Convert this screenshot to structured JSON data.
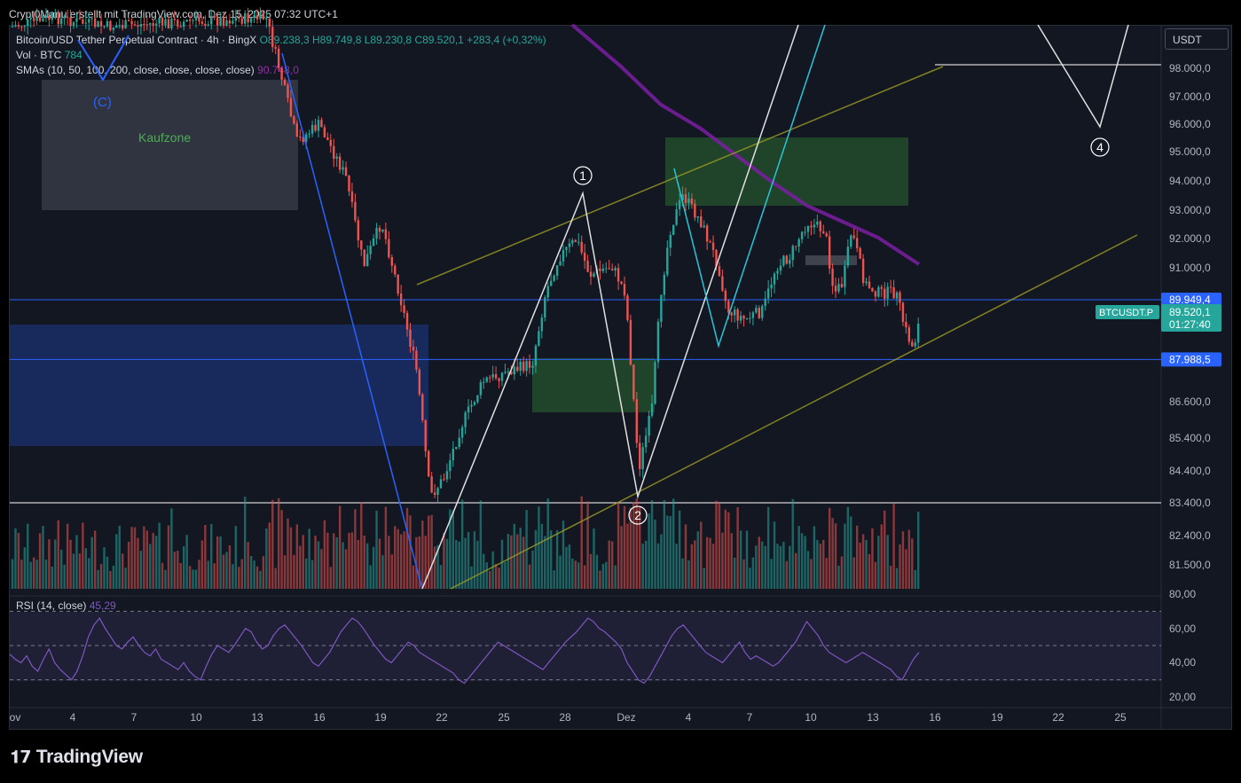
{
  "header": {
    "credit": "Crypt0Manu erstellt mit TradingView.com, Dez 15, 2025 07:32 UTC+1"
  },
  "legend": {
    "symbol": "Bitcoin/USD Tether Perpetual Contract · 4h · BingX",
    "open": "O89.238,3",
    "high": "H89.749,8",
    "low": "L89.230,8",
    "close": "C89.520,1",
    "change": "+283,4 (+0,32%)",
    "vol_label": "Vol · BTC",
    "vol_value": "784",
    "sma_label": "SMAs (10, 50, 100, 200, close, close, close, close)",
    "sma_value": "90.748,0"
  },
  "rsi": {
    "label": "RSI (14, close)",
    "value": "45,29"
  },
  "currency": "USDT",
  "footer": {
    "logo_text": "TradingView"
  },
  "colors": {
    "background": "#131722",
    "up": "#26a69a",
    "down": "#ef5350",
    "accent_blue": "#2962ff",
    "sma": "#7b1fa2",
    "rsi": "#7e57c2"
  },
  "chart_data": {
    "type": "candlestick",
    "y_axis_ticks": [
      "98.000,0",
      "97.000,0",
      "96.000,0",
      "95.000,0",
      "94.000,0",
      "93.000,0",
      "92.000,0",
      "91.000,0",
      "86.600,0",
      "85.400,0",
      "84.400,0",
      "83.400,0",
      "82.400,0",
      "81.500,0",
      "80,00"
    ],
    "y_tick_values": [
      98000,
      97000,
      96000,
      95000,
      94000,
      93000,
      92000,
      91000,
      86600,
      85400,
      84400,
      83400,
      82400,
      81500
    ],
    "x_axis_ticks": [
      "ov",
      "4",
      "7",
      "10",
      "13",
      "16",
      "19",
      "22",
      "25",
      "28",
      "Dez",
      "4",
      "7",
      "10",
      "13",
      "16",
      "19",
      "22",
      "25"
    ],
    "rsi_ticks": [
      "80,00",
      "60,00",
      "40,00",
      "20,00"
    ],
    "price_labels": [
      {
        "text": "89.949,4",
        "value": 89949.4,
        "color": "#2962ff"
      },
      {
        "text": "89.520,1",
        "value": 89520.1,
        "color": "#26a69a"
      },
      {
        "text": "01:27:40",
        "value": null,
        "color": "#26a69a"
      },
      {
        "text": "87.988,5",
        "value": 87988.5,
        "color": "#2962ff"
      }
    ],
    "symbol_tag": "BTCUSDT.P",
    "annotations": [
      {
        "text": "(C)",
        "color": "#2962ff"
      },
      {
        "text": "Kaufzone",
        "color": "#4caf50"
      },
      {
        "text": "1",
        "color": "#ffffff"
      },
      {
        "text": "2",
        "color": "#ffffff"
      },
      {
        "text": "4",
        "color": "#ffffff"
      }
    ],
    "horizontal_lines": [
      {
        "value": 89949.4,
        "color": "#2962ff"
      },
      {
        "value": 87988.5,
        "color": "#2962ff"
      },
      {
        "value": 83400,
        "color": "#ffffff"
      }
    ],
    "rsi_levels": [
      70,
      50,
      30
    ],
    "rsi_series": [
      45,
      42,
      40,
      44,
      38,
      35,
      42,
      48,
      40,
      36,
      33,
      30,
      35,
      44,
      55,
      62,
      66,
      60,
      55,
      50,
      48,
      52,
      55,
      50,
      46,
      44,
      48,
      42,
      40,
      38,
      36,
      40,
      35,
      32,
      30,
      38,
      45,
      50,
      48,
      46,
      50,
      55,
      60,
      58,
      52,
      48,
      50,
      56,
      60,
      62,
      58,
      54,
      50,
      45,
      40,
      38,
      42,
      46,
      52,
      58,
      62,
      66,
      64,
      60,
      55,
      50,
      46,
      42,
      40,
      44,
      48,
      52,
      50,
      46,
      44,
      42,
      40,
      38,
      36,
      34,
      30,
      28,
      32,
      36,
      40,
      44,
      48,
      52,
      50,
      48,
      46,
      44,
      42,
      40,
      38,
      36,
      40,
      44,
      48,
      52,
      55,
      58,
      62,
      66,
      64,
      60,
      58,
      55,
      52,
      48,
      40,
      35,
      30,
      28,
      32,
      38,
      44,
      50,
      56,
      60,
      62,
      58,
      54,
      50,
      46,
      44,
      42,
      40,
      44,
      48,
      52,
      46,
      42,
      44,
      42,
      40,
      38,
      40,
      44,
      48,
      52,
      58,
      64,
      60,
      56,
      50,
      46,
      44,
      42,
      40,
      42,
      44,
      46,
      44,
      42,
      40,
      38,
      36,
      32,
      30,
      36,
      42,
      46
    ]
  }
}
